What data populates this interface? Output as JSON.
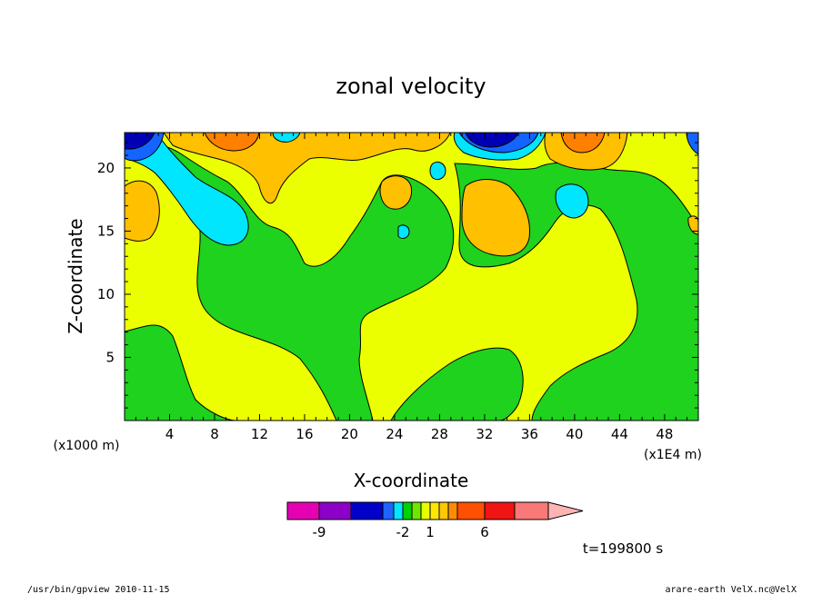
{
  "chart_data": {
    "type": "heatmap",
    "title": "zonal velocity",
    "xlabel": "X-coordinate",
    "ylabel": "Z-coordinate",
    "x_unit_left": "(x1000 m)",
    "x_unit_right": "(x1E4 m)",
    "xlim": [
      0,
      51
    ],
    "ylim": [
      0,
      22.8
    ],
    "x_ticks": [
      "4",
      "8",
      "12",
      "16",
      "20",
      "24",
      "28",
      "32",
      "36",
      "40",
      "44",
      "48"
    ],
    "y_ticks": [
      "5",
      "10",
      "15",
      "20"
    ],
    "colorbar": {
      "levels": [
        "-12",
        "-9",
        "-6",
        "-4",
        "-3",
        "-2",
        "-1",
        "0",
        "1",
        "2",
        "3",
        "4",
        "6",
        "8",
        "10"
      ],
      "colors": [
        "#e600b4",
        "#8c00c8",
        "#0000c8",
        "#1e64ff",
        "#00e6ff",
        "#00d200",
        "#6ee600",
        "#e6ff00",
        "#ffe600",
        "#ffc800",
        "#ff8c00",
        "#ff5000",
        "#f01414",
        "#fa7878",
        "#ffb4b4"
      ],
      "labels": [
        "-9",
        "-2",
        "1",
        "6"
      ]
    },
    "fields": {
      "green": "#1ed21e",
      "yellow": "#ecff00",
      "orange": "#ffc000",
      "dark_orange": "#ff8000",
      "cyan": "#00e6ff",
      "blue": "#1464ff",
      "navy": "#0000b4"
    },
    "time_label": "t=199800 s"
  },
  "footer": {
    "left": "/usr/bin/gpview  2010-11-15",
    "right": "arare-earth_VelX.nc@VelX"
  }
}
